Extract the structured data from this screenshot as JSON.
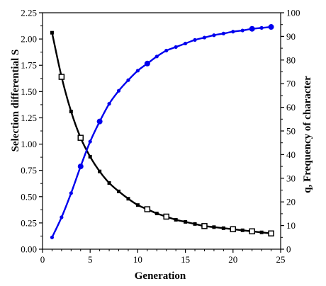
{
  "chart_data": {
    "type": "line",
    "xlabel": "Generation",
    "ylabel_left": "Selection differential S",
    "ylabel_right": "q, Frequency of character",
    "xlim": [
      0,
      25
    ],
    "ylim_left": [
      0,
      2.25
    ],
    "ylim_right": [
      0,
      100
    ],
    "x_ticks": [
      "0",
      "5",
      "10",
      "15",
      "20",
      "25"
    ],
    "y_left_ticks": [
      "0.00",
      "0.25",
      "0.50",
      "0.75",
      "1.00",
      "1.25",
      "1.50",
      "1.75",
      "2.00",
      "2.25"
    ],
    "y_right_ticks": [
      "0",
      "10",
      "20",
      "30",
      "40",
      "50",
      "60",
      "70",
      "80",
      "90",
      "100"
    ],
    "grid": false,
    "series": [
      {
        "axis": "left",
        "color": "#000000",
        "marker": "square",
        "points": [
          {
            "x": 1,
            "y": 2.06,
            "size": "small"
          },
          {
            "x": 2,
            "y": 1.64,
            "size": "large"
          },
          {
            "x": 3,
            "y": 1.31,
            "size": "small"
          },
          {
            "x": 4,
            "y": 1.06,
            "size": "large"
          },
          {
            "x": 5,
            "y": 0.88,
            "size": "small"
          },
          {
            "x": 6,
            "y": 0.74,
            "size": "small"
          },
          {
            "x": 7,
            "y": 0.63,
            "size": "small"
          },
          {
            "x": 8,
            "y": 0.55,
            "size": "small"
          },
          {
            "x": 9,
            "y": 0.48,
            "size": "small"
          },
          {
            "x": 10,
            "y": 0.42,
            "size": "small"
          },
          {
            "x": 11,
            "y": 0.38,
            "size": "large"
          },
          {
            "x": 12,
            "y": 0.34,
            "size": "small"
          },
          {
            "x": 13,
            "y": 0.31,
            "size": "large"
          },
          {
            "x": 14,
            "y": 0.28,
            "size": "small"
          },
          {
            "x": 15,
            "y": 0.26,
            "size": "small"
          },
          {
            "x": 16,
            "y": 0.24,
            "size": "small"
          },
          {
            "x": 17,
            "y": 0.22,
            "size": "large"
          },
          {
            "x": 18,
            "y": 0.21,
            "size": "small"
          },
          {
            "x": 19,
            "y": 0.2,
            "size": "small"
          },
          {
            "x": 20,
            "y": 0.19,
            "size": "large"
          },
          {
            "x": 21,
            "y": 0.18,
            "size": "small"
          },
          {
            "x": 22,
            "y": 0.17,
            "size": "large"
          },
          {
            "x": 23,
            "y": 0.16,
            "size": "small"
          },
          {
            "x": 24,
            "y": 0.15,
            "size": "large"
          }
        ]
      },
      {
        "axis": "right",
        "color": "#0000ee",
        "marker": "circle",
        "points": [
          {
            "x": 1,
            "y": 5.0,
            "size": "small"
          },
          {
            "x": 2,
            "y": 13.5,
            "size": "small"
          },
          {
            "x": 3,
            "y": 23.7,
            "size": "small"
          },
          {
            "x": 4,
            "y": 35.0,
            "size": "large"
          },
          {
            "x": 5,
            "y": 45.5,
            "size": "small"
          },
          {
            "x": 6,
            "y": 54.0,
            "size": "large"
          },
          {
            "x": 7,
            "y": 61.5,
            "size": "small"
          },
          {
            "x": 8,
            "y": 67.0,
            "size": "small"
          },
          {
            "x": 9,
            "y": 71.5,
            "size": "small"
          },
          {
            "x": 10,
            "y": 75.5,
            "size": "small"
          },
          {
            "x": 11,
            "y": 78.5,
            "size": "large"
          },
          {
            "x": 12,
            "y": 81.5,
            "size": "small"
          },
          {
            "x": 13,
            "y": 84.0,
            "size": "small"
          },
          {
            "x": 14,
            "y": 85.5,
            "size": "small"
          },
          {
            "x": 15,
            "y": 87.0,
            "size": "small"
          },
          {
            "x": 16,
            "y": 88.5,
            "size": "small"
          },
          {
            "x": 17,
            "y": 89.5,
            "size": "small"
          },
          {
            "x": 18,
            "y": 90.5,
            "size": "small"
          },
          {
            "x": 19,
            "y": 91.2,
            "size": "small"
          },
          {
            "x": 20,
            "y": 92.0,
            "size": "small"
          },
          {
            "x": 21,
            "y": 92.5,
            "size": "small"
          },
          {
            "x": 22,
            "y": 93.2,
            "size": "large"
          },
          {
            "x": 23,
            "y": 93.6,
            "size": "small"
          },
          {
            "x": 24,
            "y": 94.0,
            "size": "large"
          }
        ]
      }
    ]
  }
}
